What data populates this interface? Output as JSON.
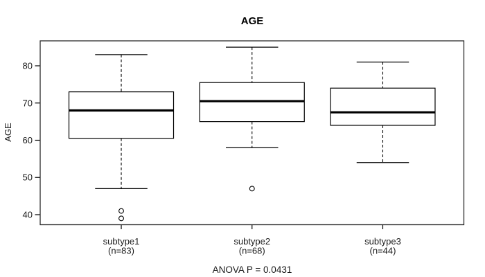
{
  "chart_data": {
    "type": "boxplot",
    "title": "AGE",
    "ylabel": "AGE",
    "xlabel": "",
    "annotation": "ANOVA P = 0.0431",
    "grid": false,
    "legend": null,
    "y_ticks": [
      40,
      50,
      60,
      70,
      80
    ],
    "ylim": [
      37.3,
      86.7
    ],
    "xlim": [
      0.38,
      3.62
    ],
    "box_width": 0.8,
    "cap_width": 0.4,
    "colors": {
      "line": "#000000",
      "frame": "#2b2b2b",
      "box_fill": "#ffffff",
      "background": "#ffffff"
    },
    "categories": [
      {
        "label": "subtype1",
        "sublabel": "(n=83)",
        "n": 83,
        "whisker_high": 83,
        "q3": 73,
        "median": 68,
        "q1": 60.5,
        "whisker_low": 47,
        "outliers": [
          41,
          39
        ]
      },
      {
        "label": "subtype2",
        "sublabel": "(n=68)",
        "n": 68,
        "whisker_high": 85,
        "q3": 75.5,
        "median": 70.5,
        "q1": 65,
        "whisker_low": 58,
        "outliers": [
          47
        ]
      },
      {
        "label": "subtype3",
        "sublabel": "(n=44)",
        "n": 44,
        "whisker_high": 81,
        "q3": 74,
        "median": 67.5,
        "q1": 64,
        "whisker_low": 54,
        "outliers": []
      }
    ]
  }
}
